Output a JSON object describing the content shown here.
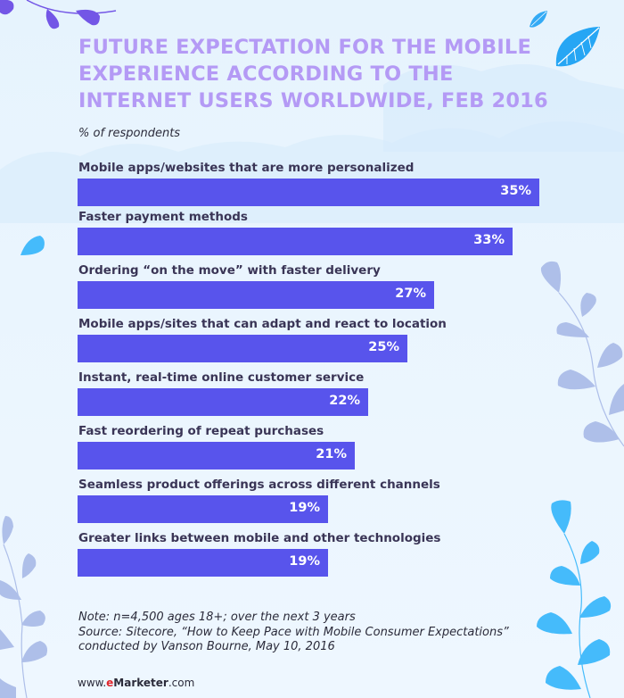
{
  "chart_data": {
    "type": "bar",
    "orientation": "horizontal",
    "title": "FUTURE EXPECTATION FOR THE MOBILE EXPERIENCE ACCORDING TO THE INTERNET USERS  WORLDWIDE, FEB 2016",
    "title_lines": [
      "FUTURE EXPECTATION FOR THE MOBILE",
      "EXPERIENCE ACCORDING TO THE",
      "INTERNET USERS  WORLDWIDE, FEB 2016"
    ],
    "subtitle": "% of respondents",
    "xlabel": "",
    "ylabel": "% of respondents",
    "xlim": [
      0,
      35
    ],
    "grid": false,
    "legend": "none",
    "categories": [
      "Mobile apps/websites that are more personalized",
      "Faster payment methods",
      "Ordering “on the move” with faster delivery",
      "Mobile apps/sites that can adapt and react to location",
      "Instant, real-time online customer service",
      "Fast reordering of repeat purchases",
      "Seamless product offerings across different channels",
      "Greater links between mobile and other technologies"
    ],
    "values": [
      35,
      33,
      27,
      25,
      22,
      21,
      19,
      19
    ],
    "value_labels": [
      "35%",
      "33%",
      "27%",
      "25%",
      "22%",
      "21%",
      "19%",
      "19%"
    ],
    "bar_color": "#5854ec",
    "title_color": "#b49af5"
  },
  "footer": {
    "note": "Note: n=4,500 ages 18+; over the next 3 years",
    "source": "Source: Sitecore, “How to Keep Pace with Mobile Consumer Expectations”",
    "source_cont": "conducted by Vanson Bourne, May 10, 2016",
    "brand_prefix": "www.",
    "brand_e": "e",
    "brand_name": "Marketer",
    "brand_suffix": ".com",
    "brand_accent": "#e0262d"
  }
}
